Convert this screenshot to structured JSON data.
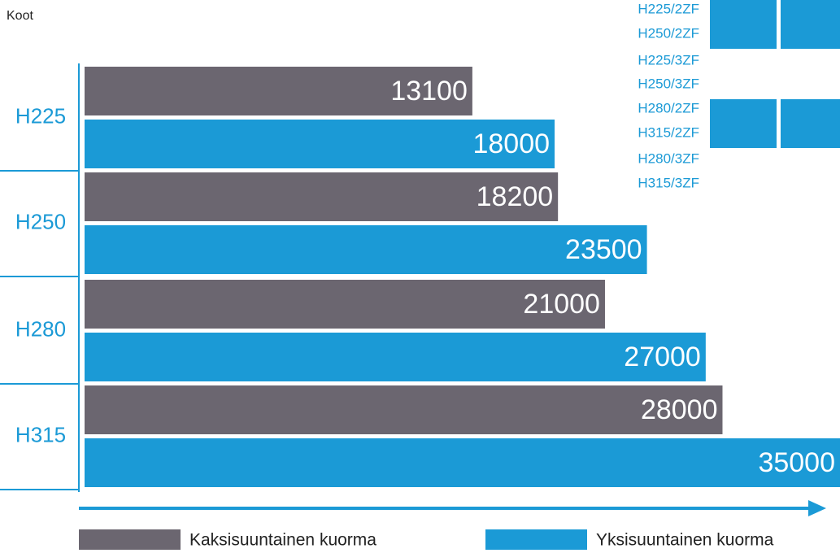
{
  "chart_data": {
    "type": "barh",
    "ylabel": "Koot",
    "categories": [
      "H225",
      "H250",
      "H280",
      "H315"
    ],
    "series": [
      {
        "name": "Kaksisuuntainen kuorma",
        "color": "#6b6670",
        "values": [
          13100,
          18200,
          21000,
          28000
        ]
      },
      {
        "name": "Yksisuuntainen kuorma",
        "color": "#1b9ad6",
        "values": [
          18000,
          23500,
          27000,
          35000
        ]
      }
    ],
    "xlim": [
      -10000,
      35000
    ],
    "annotations": [
      "H225/2ZF",
      "H250/2ZF",
      "H225/3ZF",
      "H250/3ZF",
      "H280/2ZF",
      "H315/2ZF",
      "H280/3ZF",
      "H315/3ZF"
    ]
  }
}
